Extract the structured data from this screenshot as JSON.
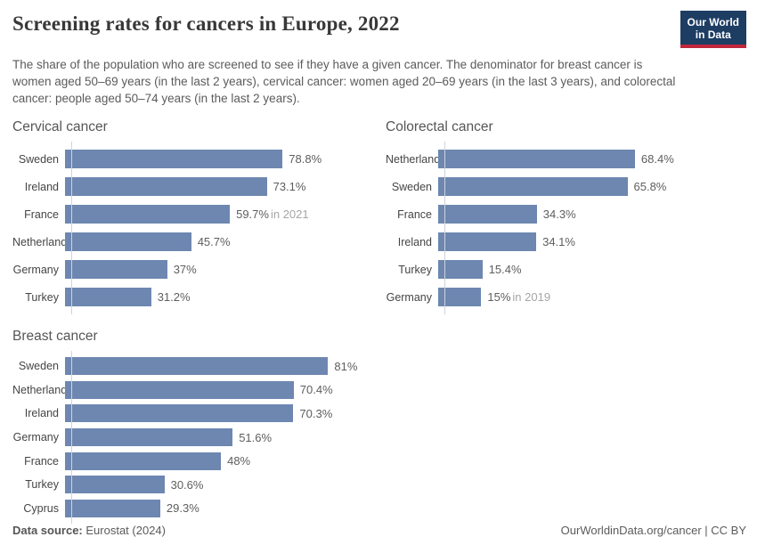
{
  "header": {
    "title": "Screening rates for cancers in Europe, 2022",
    "subtitle": "The share of the population who are screened to see if they have a given cancer. The denominator for breast cancer is women aged 50–69 years (in the last 2 years), cervical cancer: women aged 20–69 years (in the last 3 years), and colorectal cancer: people aged 50–74 years (in the last 2 years).",
    "logo": {
      "line1": "Our World",
      "line2": "in Data"
    }
  },
  "colors": {
    "bar": "#6d87b0",
    "axis": "#cfd3da",
    "logo_navy": "#1d3d63",
    "logo_red": "#c0273c"
  },
  "chart_data": [
    {
      "type": "bar",
      "title": "Cervical cancer",
      "orientation": "horizontal",
      "unit": "%",
      "xlim": [
        0,
        100
      ],
      "xmax": 100,
      "grid": false,
      "legend": "none",
      "bars": [
        {
          "label": "Sweden",
          "value": 78.8,
          "display": "78.8%"
        },
        {
          "label": "Ireland",
          "value": 73.1,
          "display": "73.1%"
        },
        {
          "label": "France",
          "value": 59.7,
          "display": "59.7%",
          "note": "in 2021"
        },
        {
          "label": "Netherlands",
          "value": 45.7,
          "display": "45.7%"
        },
        {
          "label": "Germany",
          "value": 37,
          "display": "37%"
        },
        {
          "label": "Turkey",
          "value": 31.2,
          "display": "31.2%"
        }
      ]
    },
    {
      "type": "bar",
      "title": "Colorectal cancer",
      "orientation": "horizontal",
      "unit": "%",
      "xlim": [
        0,
        96
      ],
      "xmax": 96,
      "grid": false,
      "legend": "none",
      "bars": [
        {
          "label": "Netherlands",
          "value": 68.4,
          "display": "68.4%"
        },
        {
          "label": "Sweden",
          "value": 65.8,
          "display": "65.8%"
        },
        {
          "label": "France",
          "value": 34.3,
          "display": "34.3%"
        },
        {
          "label": "Ireland",
          "value": 34.1,
          "display": "34.1%"
        },
        {
          "label": "Turkey",
          "value": 15.4,
          "display": "15.4%"
        },
        {
          "label": "Germany",
          "value": 15,
          "display": "15%",
          "note": "in 2019"
        }
      ]
    },
    {
      "type": "bar",
      "title": "Breast cancer",
      "orientation": "horizontal",
      "unit": "%",
      "xlim": [
        0,
        85
      ],
      "xmax": 85,
      "grid": false,
      "legend": "none",
      "bars": [
        {
          "label": "Sweden",
          "value": 81,
          "display": "81%"
        },
        {
          "label": "Netherlands",
          "value": 70.4,
          "display": "70.4%"
        },
        {
          "label": "Ireland",
          "value": 70.3,
          "display": "70.3%"
        },
        {
          "label": "Germany",
          "value": 51.6,
          "display": "51.6%"
        },
        {
          "label": "France",
          "value": 48,
          "display": "48%"
        },
        {
          "label": "Turkey",
          "value": 30.6,
          "display": "30.6%"
        },
        {
          "label": "Cyprus",
          "value": 29.3,
          "display": "29.3%"
        }
      ]
    }
  ],
  "footer": {
    "source_label": "Data source:",
    "source_value": "Eurostat (2024)",
    "credit": "OurWorldinData.org/cancer | CC BY"
  }
}
